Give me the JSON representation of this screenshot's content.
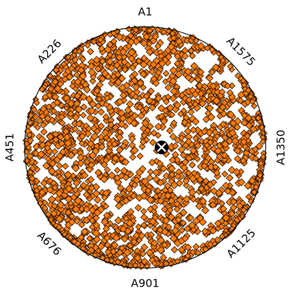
{
  "chart_data": {
    "type": "radviz",
    "title": "",
    "anchors": [
      "A1",
      "A226",
      "A451",
      "A676",
      "A901",
      "A1125",
      "A1350",
      "A1575"
    ],
    "anchor_angles_deg": [
      90,
      135,
      180,
      225,
      270,
      315,
      0,
      45
    ],
    "series": [
      {
        "marker": "diamond",
        "point_count": 1800,
        "visible_gaps": "scattered blank patches along the right and lower-right rim; dense coverage elsewhere"
      }
    ],
    "center_marker": "x",
    "legend": "none",
    "grid": false
  },
  "colors": {
    "points_fill": "#ff7f0e",
    "points_edge": "#2b1400",
    "center_marker": "#000000",
    "circle": "#000000"
  }
}
